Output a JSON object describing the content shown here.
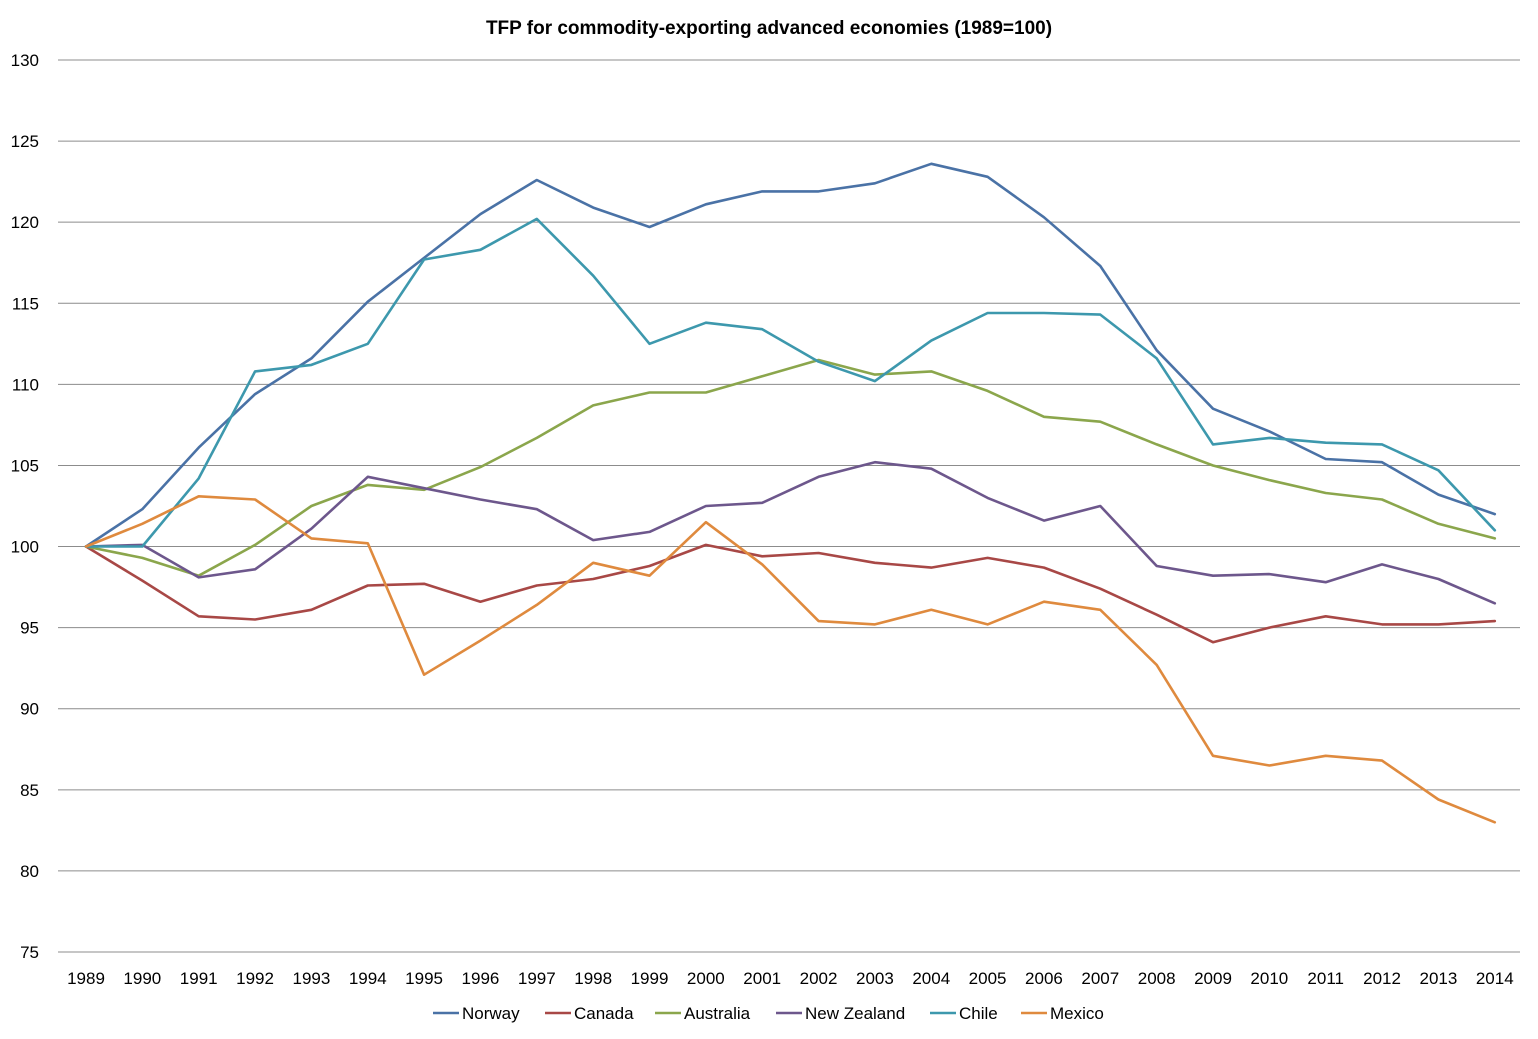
{
  "chart_data": {
    "type": "line",
    "title": "TFP for commodity-exporting advanced economies (1989=100)",
    "xlabel": "",
    "ylabel": "",
    "ylim": [
      75,
      130
    ],
    "yticks": [
      75,
      80,
      85,
      90,
      95,
      100,
      105,
      110,
      115,
      120,
      125,
      130
    ],
    "grid": true,
    "legend_position": "bottom",
    "categories": [
      "1989",
      "1990",
      "1991",
      "1992",
      "1993",
      "1994",
      "1995",
      "1996",
      "1997",
      "1998",
      "1999",
      "2000",
      "2001",
      "2002",
      "2003",
      "2004",
      "2005",
      "2006",
      "2007",
      "2008",
      "2009",
      "2010",
      "2011",
      "2012",
      "2013",
      "2014"
    ],
    "series": [
      {
        "name": "Norway",
        "color": "#4a72a6",
        "values": [
          100,
          102.3,
          106.1,
          109.4,
          111.6,
          115.1,
          117.8,
          120.5,
          122.6,
          120.9,
          119.7,
          121.1,
          121.9,
          121.9,
          122.4,
          123.6,
          122.8,
          120.3,
          117.3,
          112.1,
          108.5,
          107.1,
          105.4,
          105.2,
          103.2,
          102.0
        ]
      },
      {
        "name": "Canada",
        "color": "#a84846",
        "values": [
          100,
          97.9,
          95.7,
          95.5,
          96.1,
          97.6,
          97.7,
          96.6,
          97.6,
          98.0,
          98.8,
          100.1,
          99.4,
          99.6,
          99.0,
          98.7,
          99.3,
          98.7,
          97.4,
          95.8,
          94.1,
          95.0,
          95.7,
          95.2,
          95.2,
          95.4
        ]
      },
      {
        "name": "Australia",
        "color": "#8ba64c",
        "values": [
          100,
          99.3,
          98.2,
          100.1,
          102.5,
          103.8,
          103.5,
          104.9,
          106.7,
          108.7,
          109.5,
          109.5,
          110.5,
          111.5,
          110.6,
          110.8,
          109.6,
          108.0,
          107.7,
          106.3,
          105.0,
          104.1,
          103.3,
          102.9,
          101.4,
          100.5
        ]
      },
      {
        "name": "New Zealand",
        "color": "#6d578c",
        "values": [
          100,
          100.1,
          98.1,
          98.6,
          101.1,
          104.3,
          103.6,
          102.9,
          102.3,
          100.4,
          100.9,
          102.5,
          102.7,
          104.3,
          105.2,
          104.8,
          103.0,
          101.6,
          102.5,
          98.8,
          98.2,
          98.3,
          97.8,
          98.9,
          98.0,
          96.5
        ]
      },
      {
        "name": "Chile",
        "color": "#3d98ad",
        "values": [
          100,
          100,
          104.2,
          110.8,
          111.2,
          112.5,
          117.7,
          118.3,
          120.2,
          116.7,
          112.5,
          113.8,
          113.4,
          111.4,
          110.2,
          112.7,
          114.4,
          114.4,
          114.3,
          111.6,
          106.3,
          106.7,
          106.4,
          106.3,
          104.7,
          101.0
        ]
      },
      {
        "name": "Mexico",
        "color": "#df8a3e",
        "values": [
          100,
          101.4,
          103.1,
          102.9,
          100.5,
          100.2,
          92.1,
          94.2,
          96.4,
          99.0,
          98.2,
          101.5,
          98.9,
          95.4,
          95.2,
          96.1,
          95.2,
          96.6,
          96.1,
          92.7,
          87.1,
          86.5,
          87.1,
          86.8,
          84.4,
          83.0
        ]
      }
    ]
  }
}
